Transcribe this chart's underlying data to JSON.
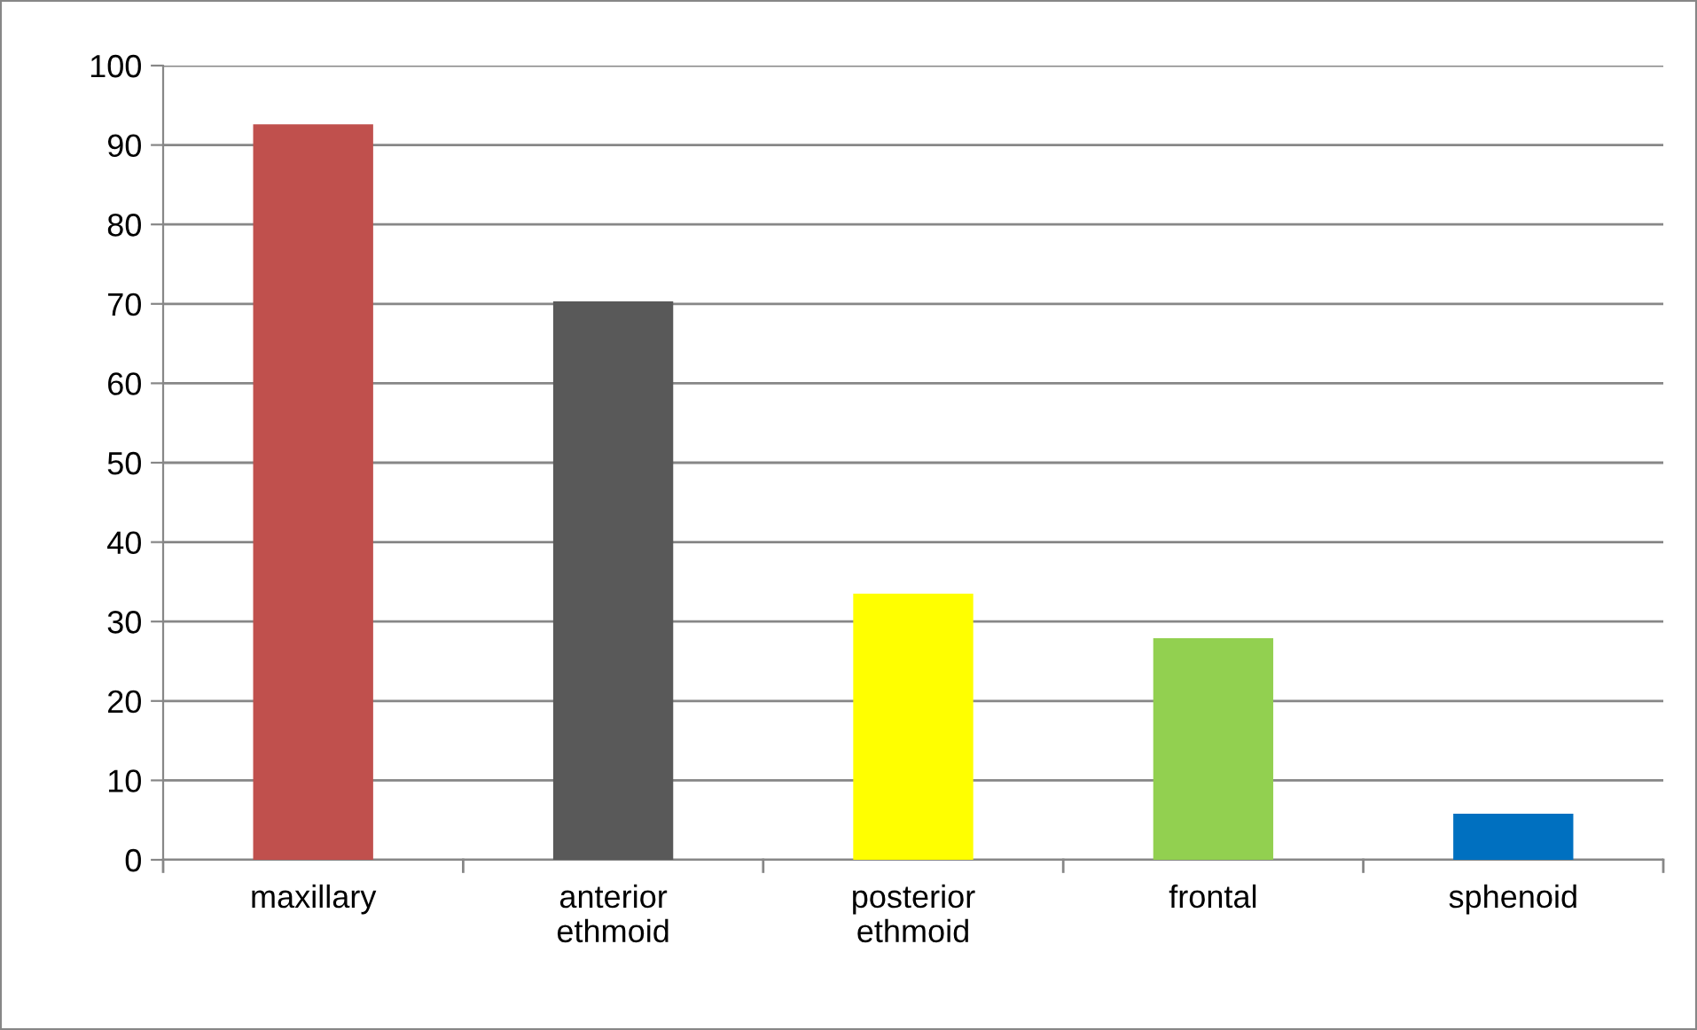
{
  "chart_data": {
    "type": "bar",
    "categories": [
      "maxillary",
      "anterior\nethmoid",
      "posterior\nethmoid",
      "frontal",
      "sphenoid"
    ],
    "values": [
      92.6,
      70.3,
      33.5,
      27.9,
      5.8
    ],
    "colors": [
      "#c0504d",
      "#595959",
      "#ffff00",
      "#92d050",
      "#0070c0"
    ],
    "ylim": [
      0,
      100
    ],
    "yticks": [
      0,
      10,
      20,
      30,
      40,
      50,
      60,
      70,
      80,
      90,
      100
    ],
    "grid": "y"
  }
}
